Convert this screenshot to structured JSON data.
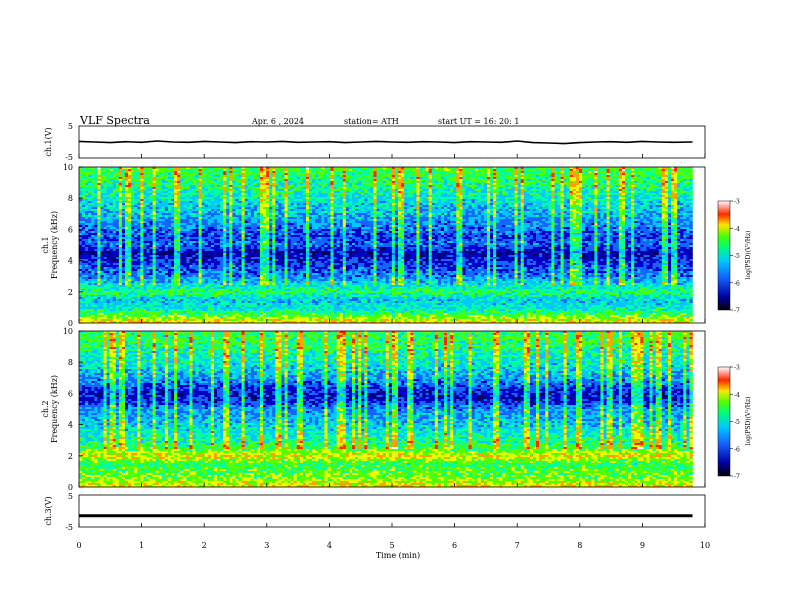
{
  "header": {
    "title": "VLF  Spectra",
    "date": "Apr. 6   , 2024",
    "station": "station= ATH",
    "start": "start  UT  =    16: 20: 1"
  },
  "colors": {
    "spectral": [
      "#000064",
      "#0000c8",
      "#1464ff",
      "#00c8ff",
      "#00ffa0",
      "#50ff00",
      "#e6ff00",
      "#ffa000",
      "#ff2800",
      "#ffffff"
    ]
  },
  "chart_data": [
    {
      "id": "ch1-waveform",
      "type": "line",
      "ylabel": "ch.1(V)",
      "ylim": [
        -5,
        5
      ],
      "yticks": [
        "5",
        "-5"
      ],
      "xlim": [
        0,
        10
      ],
      "x": [
        0,
        0.25,
        0.5,
        0.75,
        1,
        1.25,
        1.5,
        1.75,
        2,
        2.25,
        2.5,
        2.75,
        3,
        3.25,
        3.5,
        3.75,
        4,
        4.25,
        4.5,
        4.75,
        5,
        5.25,
        5.5,
        5.75,
        6,
        6.25,
        6.5,
        6.75,
        7,
        7.25,
        7.5,
        7.75,
        8,
        8.25,
        8.5,
        8.75,
        9,
        9.25,
        9.5,
        9.8
      ],
      "values": [
        0.2,
        0,
        -0.2,
        0.1,
        -0.1,
        0.3,
        0,
        -0.1,
        0.2,
        0,
        -0.2,
        0.1,
        0,
        0.2,
        -0.1,
        0,
        0.1,
        -0.2,
        0,
        0.2,
        0,
        -0.1,
        0.1,
        0,
        -0.2,
        0.1,
        0,
        -0.1,
        0.3,
        -0.2,
        -0.3,
        -0.5,
        -0.2,
        0,
        0.1,
        -0.1,
        0.2,
        0,
        -0.1,
        0
      ]
    },
    {
      "id": "ch1-spectrogram",
      "type": "heatmap",
      "ylabel": "Frequency (kHz)",
      "panel_label": "ch.1",
      "ylim": [
        0,
        10
      ],
      "yticks": [
        "0",
        "2",
        "4",
        "6",
        "8",
        "10"
      ],
      "xlim": [
        0,
        10
      ],
      "freq_profile_khz": [
        0,
        0.5,
        1,
        1.5,
        2,
        2.5,
        3,
        3.5,
        4,
        4.5,
        5,
        5.5,
        6,
        6.5,
        7,
        7.5,
        8,
        8.5,
        9,
        9.5,
        10
      ],
      "level_profile": [
        -3.8,
        -4.6,
        -5.2,
        -5.4,
        -4.8,
        -5.3,
        -5.8,
        -6.0,
        -6.2,
        -6.5,
        -5.9,
        -6.1,
        -5.9,
        -5.7,
        -5.5,
        -5.4,
        -5.2,
        -5.1,
        -4.9,
        -4.8,
        -4.7
      ],
      "colorbar": {
        "label": "log(PSD)(V²/Hz)",
        "ticks": [
          "-3",
          "-4",
          "-5",
          "-6",
          "-7"
        ],
        "range": [
          -7,
          -3
        ]
      }
    },
    {
      "id": "ch2-spectrogram",
      "type": "heatmap",
      "ylabel": "Frequency (kHz)",
      "panel_label": "ch.2",
      "ylim": [
        0,
        10
      ],
      "yticks": [
        "0",
        "2",
        "4",
        "6",
        "8",
        "10"
      ],
      "xlim": [
        0,
        10
      ],
      "freq_profile_khz": [
        0,
        0.5,
        1,
        1.5,
        2,
        2.5,
        3,
        3.5,
        4,
        4.5,
        5,
        5.5,
        6,
        6.5,
        7,
        7.5,
        8,
        8.5,
        9,
        9.5,
        10
      ],
      "level_profile": [
        -3.9,
        -4.4,
        -4.6,
        -4.8,
        -4.0,
        -4.7,
        -5.0,
        -5.2,
        -5.4,
        -5.6,
        -5.7,
        -6.2,
        -6.3,
        -6.0,
        -5.6,
        -5.4,
        -5.2,
        -5.1,
        -4.9,
        -4.8,
        -4.8
      ],
      "colorbar": {
        "label": "log(PSD)(V²/Hz)",
        "ticks": [
          "-3",
          "-4",
          "-5",
          "-6",
          "-7"
        ],
        "range": [
          -7,
          -3
        ]
      }
    },
    {
      "id": "ch3-waveform",
      "type": "line",
      "ylabel": "ch.3(V)",
      "ylim": [
        -5,
        5
      ],
      "yticks": [
        "5",
        "-5"
      ],
      "xlim": [
        0,
        10
      ],
      "x": [
        0,
        9.8
      ],
      "values": [
        -1.5,
        -1.5
      ]
    }
  ],
  "x_axis": {
    "label": "Time  (min)",
    "ticks": [
      "0",
      "1",
      "2",
      "3",
      "4",
      "5",
      "6",
      "7",
      "8",
      "9",
      "10"
    ]
  }
}
